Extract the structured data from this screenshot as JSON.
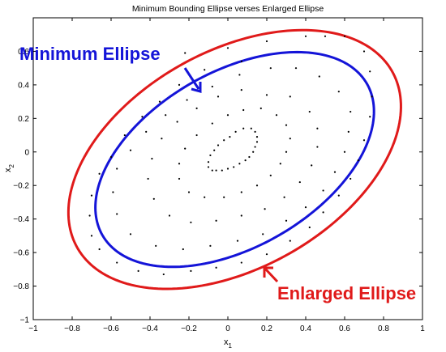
{
  "chart_data": {
    "type": "scatter",
    "title": "Minimum Bounding Ellipse verses Enlarged Ellipse",
    "xlabel": "x",
    "xlabel_sub": "1",
    "ylabel": "x",
    "ylabel_sub": "2",
    "xlim": [
      -1,
      1
    ],
    "ylim": [
      -1,
      0.8
    ],
    "xticks": [
      -1,
      -0.8,
      -0.6,
      -0.4,
      -0.2,
      0,
      0.2,
      0.4,
      0.6,
      0.8,
      1
    ],
    "yticks": [
      -1,
      -0.8,
      -0.6,
      -0.4,
      -0.2,
      0,
      0.2,
      0.4,
      0.6
    ],
    "xtick_labels": [
      "−1",
      "−0.8",
      "−0.6",
      "−0.4",
      "−0.2",
      "0",
      "0.2",
      "0.4",
      "0.6",
      "0.8",
      "1"
    ],
    "ytick_labels": [
      "−1",
      "−0.8",
      "−0.6",
      "−0.4",
      "−0.2",
      "0",
      "0.2",
      "0.4",
      "0.6"
    ],
    "grid": false,
    "colors": {
      "minimum": "#1414d8",
      "enlarged": "#e01a1a",
      "points": "#000000"
    },
    "ellipses": [
      {
        "name": "Minimum Ellipse",
        "center": [
          0.035,
          -0.045
        ],
        "semi_major": 0.82,
        "semi_minor": 0.5,
        "angle_deg": 38
      },
      {
        "name": "Enlarged Ellipse",
        "center": [
          0.035,
          -0.045
        ],
        "semi_major": 0.97,
        "semi_minor": 0.62,
        "angle_deg": 38
      }
    ],
    "points": [
      [
        0.08,
        0.14
      ],
      [
        0.12,
        0.14
      ],
      [
        0.14,
        0.12
      ],
      [
        0.15,
        0.09
      ],
      [
        0.15,
        0.06
      ],
      [
        0.14,
        0.03
      ],
      [
        0.13,
        0.0
      ],
      [
        0.11,
        -0.03
      ],
      [
        0.09,
        -0.05
      ],
      [
        0.06,
        -0.07
      ],
      [
        0.03,
        -0.09
      ],
      [
        0.0,
        -0.1
      ],
      [
        -0.03,
        -0.11
      ],
      [
        -0.06,
        -0.11
      ],
      [
        -0.08,
        -0.11
      ],
      [
        -0.1,
        -0.09
      ],
      [
        -0.1,
        -0.06
      ],
      [
        -0.09,
        -0.02
      ],
      [
        -0.07,
        0.01
      ],
      [
        -0.05,
        0.04
      ],
      [
        -0.02,
        0.07
      ],
      [
        0.01,
        0.09
      ],
      [
        0.04,
        0.12
      ],
      [
        0.25,
        0.22
      ],
      [
        0.3,
        0.16
      ],
      [
        0.32,
        0.08
      ],
      [
        0.3,
        0.0
      ],
      [
        0.27,
        -0.07
      ],
      [
        0.22,
        -0.14
      ],
      [
        0.15,
        -0.2
      ],
      [
        0.07,
        -0.24
      ],
      [
        -0.02,
        -0.27
      ],
      [
        -0.12,
        -0.27
      ],
      [
        -0.2,
        -0.24
      ],
      [
        -0.25,
        -0.16
      ],
      [
        -0.25,
        -0.07
      ],
      [
        -0.22,
        0.02
      ],
      [
        -0.16,
        0.1
      ],
      [
        -0.08,
        0.17
      ],
      [
        0.0,
        0.22
      ],
      [
        0.08,
        0.25
      ],
      [
        0.17,
        0.26
      ],
      [
        0.2,
        0.34
      ],
      [
        0.32,
        0.33
      ],
      [
        0.42,
        0.24
      ],
      [
        0.46,
        0.14
      ],
      [
        0.46,
        0.03
      ],
      [
        0.43,
        -0.08
      ],
      [
        0.37,
        -0.18
      ],
      [
        0.29,
        -0.27
      ],
      [
        0.19,
        -0.34
      ],
      [
        0.07,
        -0.38
      ],
      [
        -0.06,
        -0.41
      ],
      [
        -0.19,
        -0.42
      ],
      [
        -0.3,
        -0.38
      ],
      [
        -0.38,
        -0.28
      ],
      [
        -0.41,
        -0.16
      ],
      [
        -0.39,
        -0.04
      ],
      [
        -0.34,
        0.08
      ],
      [
        -0.26,
        0.18
      ],
      [
        -0.16,
        0.26
      ],
      [
        -0.05,
        0.33
      ],
      [
        0.07,
        0.37
      ],
      [
        0.22,
        0.5
      ],
      [
        0.35,
        0.5
      ],
      [
        0.47,
        0.45
      ],
      [
        0.57,
        0.36
      ],
      [
        0.63,
        0.24
      ],
      [
        0.62,
        0.12
      ],
      [
        0.6,
        0.0
      ],
      [
        0.55,
        -0.12
      ],
      [
        0.49,
        -0.23
      ],
      [
        0.4,
        -0.33
      ],
      [
        0.3,
        -0.41
      ],
      [
        0.18,
        -0.49
      ],
      [
        0.05,
        -0.53
      ],
      [
        -0.09,
        -0.56
      ],
      [
        -0.23,
        -0.58
      ],
      [
        -0.37,
        -0.56
      ],
      [
        -0.5,
        -0.49
      ],
      [
        -0.57,
        -0.37
      ],
      [
        -0.59,
        -0.24
      ],
      [
        -0.57,
        -0.1
      ],
      [
        -0.5,
        0.01
      ],
      [
        -0.42,
        0.12
      ],
      [
        -0.32,
        0.22
      ],
      [
        -0.21,
        0.31
      ],
      [
        -0.08,
        0.39
      ],
      [
        0.06,
        0.46
      ],
      [
        -0.22,
        0.59
      ],
      [
        0.0,
        0.62
      ],
      [
        0.2,
        0.66
      ],
      [
        0.4,
        0.69
      ],
      [
        0.5,
        0.69
      ],
      [
        0.6,
        0.69
      ],
      [
        0.7,
        0.6
      ],
      [
        0.73,
        0.48
      ],
      [
        0.74,
        0.33
      ],
      [
        0.73,
        0.21
      ],
      [
        0.7,
        0.07
      ],
      [
        0.67,
        -0.05
      ],
      [
        0.63,
        -0.16
      ],
      [
        0.57,
        -0.26
      ],
      [
        0.49,
        -0.36
      ],
      [
        0.42,
        -0.45
      ],
      [
        0.32,
        -0.53
      ],
      [
        0.2,
        -0.61
      ],
      [
        0.07,
        -0.66
      ],
      [
        -0.06,
        -0.69
      ],
      [
        -0.19,
        -0.71
      ],
      [
        -0.33,
        -0.73
      ],
      [
        -0.46,
        -0.71
      ],
      [
        -0.57,
        -0.66
      ],
      [
        -0.66,
        -0.58
      ],
      [
        -0.7,
        -0.5
      ],
      [
        -0.71,
        -0.38
      ],
      [
        -0.7,
        -0.26
      ],
      [
        -0.66,
        -0.13
      ],
      [
        -0.6,
        -0.03
      ],
      [
        -0.53,
        0.1
      ],
      [
        -0.44,
        0.21
      ],
      [
        -0.35,
        0.3
      ],
      [
        -0.25,
        0.4
      ],
      [
        -0.12,
        0.49
      ],
      [
        0.07,
        0.54
      ]
    ]
  },
  "annotations": {
    "minimum_label": "Minimum Ellipse",
    "enlarged_label": "Enlarged Ellipse"
  }
}
